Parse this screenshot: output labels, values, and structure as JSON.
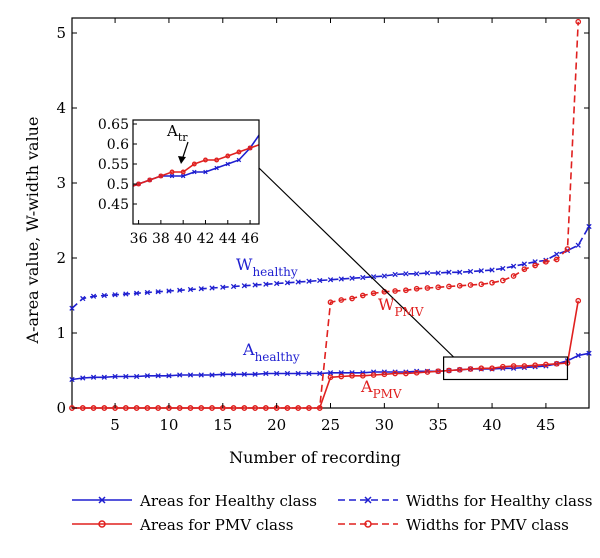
{
  "chart_data": {
    "type": "line",
    "xlabel": "Number of recording",
    "ylabel": "A-area value, W-width value",
    "xlim": [
      1,
      49
    ],
    "ylim": [
      0,
      5.2
    ],
    "x_ticks": [
      5,
      10,
      15,
      20,
      25,
      30,
      35,
      40,
      45
    ],
    "y_ticks": [
      0,
      1,
      2,
      3,
      4,
      5
    ],
    "grid": false,
    "legend_position": "bottom",
    "colors": {
      "healthy": "#1f1fd0",
      "pmv": "#e0201f"
    },
    "series": [
      {
        "name": "Areas for Healthy class",
        "key": "areas_healthy",
        "color": "#1f1fd0",
        "dash": false,
        "marker": "x",
        "x": [
          1,
          2,
          3,
          4,
          5,
          6,
          7,
          8,
          9,
          10,
          11,
          12,
          13,
          14,
          15,
          16,
          17,
          18,
          19,
          20,
          21,
          22,
          23,
          24,
          25,
          26,
          27,
          28,
          29,
          30,
          31,
          32,
          33,
          34,
          35,
          36,
          37,
          38,
          39,
          40,
          41,
          42,
          43,
          44,
          45,
          46,
          47,
          48,
          49
        ],
        "values": [
          0.38,
          0.4,
          0.41,
          0.41,
          0.42,
          0.42,
          0.42,
          0.43,
          0.43,
          0.43,
          0.44,
          0.44,
          0.44,
          0.44,
          0.45,
          0.45,
          0.45,
          0.45,
          0.46,
          0.46,
          0.46,
          0.46,
          0.46,
          0.46,
          0.47,
          0.47,
          0.47,
          0.47,
          0.48,
          0.48,
          0.48,
          0.48,
          0.49,
          0.49,
          0.49,
          0.5,
          0.51,
          0.52,
          0.52,
          0.52,
          0.53,
          0.53,
          0.54,
          0.55,
          0.56,
          0.59,
          0.63,
          0.7,
          0.73
        ]
      },
      {
        "name": "Areas for PMV class",
        "key": "areas_pmv",
        "color": "#e0201f",
        "dash": false,
        "marker": "o",
        "x": [
          1,
          2,
          3,
          4,
          5,
          6,
          7,
          8,
          9,
          10,
          11,
          12,
          13,
          14,
          15,
          16,
          17,
          18,
          19,
          20,
          21,
          22,
          23,
          24,
          25,
          26,
          27,
          28,
          29,
          30,
          31,
          32,
          33,
          34,
          35,
          36,
          37,
          38,
          39,
          40,
          41,
          42,
          43,
          44,
          45,
          46,
          47,
          48
        ],
        "values": [
          0,
          0,
          0,
          0,
          0,
          0,
          0,
          0,
          0,
          0,
          0,
          0,
          0,
          0,
          0,
          0,
          0,
          0,
          0,
          0,
          0,
          0,
          0,
          0,
          0.41,
          0.42,
          0.43,
          0.43,
          0.44,
          0.45,
          0.46,
          0.46,
          0.47,
          0.48,
          0.49,
          0.5,
          0.51,
          0.52,
          0.53,
          0.53,
          0.55,
          0.56,
          0.56,
          0.57,
          0.58,
          0.59,
          0.6,
          1.43
        ]
      },
      {
        "name": "Widths for Healthy class",
        "key": "widths_healthy",
        "color": "#1f1fd0",
        "dash": true,
        "marker": "x",
        "x": [
          1,
          2,
          3,
          4,
          5,
          6,
          7,
          8,
          9,
          10,
          11,
          12,
          13,
          14,
          15,
          16,
          17,
          18,
          19,
          20,
          21,
          22,
          23,
          24,
          25,
          26,
          27,
          28,
          29,
          30,
          31,
          32,
          33,
          34,
          35,
          36,
          37,
          38,
          39,
          40,
          41,
          42,
          43,
          44,
          45,
          46,
          47,
          48,
          49
        ],
        "values": [
          1.33,
          1.46,
          1.49,
          1.5,
          1.51,
          1.52,
          1.53,
          1.54,
          1.55,
          1.56,
          1.57,
          1.58,
          1.59,
          1.6,
          1.61,
          1.62,
          1.63,
          1.64,
          1.65,
          1.66,
          1.67,
          1.68,
          1.69,
          1.7,
          1.71,
          1.72,
          1.73,
          1.74,
          1.75,
          1.76,
          1.78,
          1.79,
          1.79,
          1.8,
          1.8,
          1.81,
          1.81,
          1.82,
          1.83,
          1.84,
          1.86,
          1.89,
          1.92,
          1.95,
          1.97,
          2.05,
          2.1,
          2.17,
          2.42
        ]
      },
      {
        "name": "Widths for PMV class",
        "key": "widths_pmv",
        "color": "#e0201f",
        "dash": true,
        "marker": "o",
        "x": [
          1,
          2,
          3,
          4,
          5,
          6,
          7,
          8,
          9,
          10,
          11,
          12,
          13,
          14,
          15,
          16,
          17,
          18,
          19,
          20,
          21,
          22,
          23,
          24,
          25,
          26,
          27,
          28,
          29,
          30,
          31,
          32,
          33,
          34,
          35,
          36,
          37,
          38,
          39,
          40,
          41,
          42,
          43,
          44,
          45,
          46,
          47,
          48
        ],
        "values": [
          0,
          0,
          0,
          0,
          0,
          0,
          0,
          0,
          0,
          0,
          0,
          0,
          0,
          0,
          0,
          0,
          0,
          0,
          0,
          0,
          0,
          0,
          0,
          0,
          1.41,
          1.44,
          1.46,
          1.5,
          1.53,
          1.55,
          1.56,
          1.57,
          1.59,
          1.6,
          1.61,
          1.62,
          1.63,
          1.64,
          1.65,
          1.67,
          1.7,
          1.76,
          1.85,
          1.9,
          1.95,
          1.98,
          2.12,
          5.15
        ]
      }
    ],
    "annotations": {
      "w_healthy": {
        "text": "W",
        "sub": "healthy"
      },
      "w_pmv": {
        "text": "W",
        "sub": "PMV"
      },
      "a_healthy": {
        "text": "A",
        "sub": "healthy"
      },
      "a_pmv": {
        "text": "A",
        "sub": "PMV"
      },
      "a_tr": {
        "text": "A",
        "sub": "tr"
      }
    },
    "inset": {
      "xlim": [
        35.5,
        46.8
      ],
      "ylim": [
        0.4,
        0.66
      ],
      "x_ticks": [
        36,
        38,
        40,
        42,
        44,
        46
      ],
      "y_ticks": [
        0.45,
        0.5,
        0.55,
        0.6,
        0.65
      ],
      "zoom_box": {
        "xlim": [
          35.5,
          47
        ],
        "ylim": [
          0.38,
          0.68
        ]
      }
    }
  }
}
